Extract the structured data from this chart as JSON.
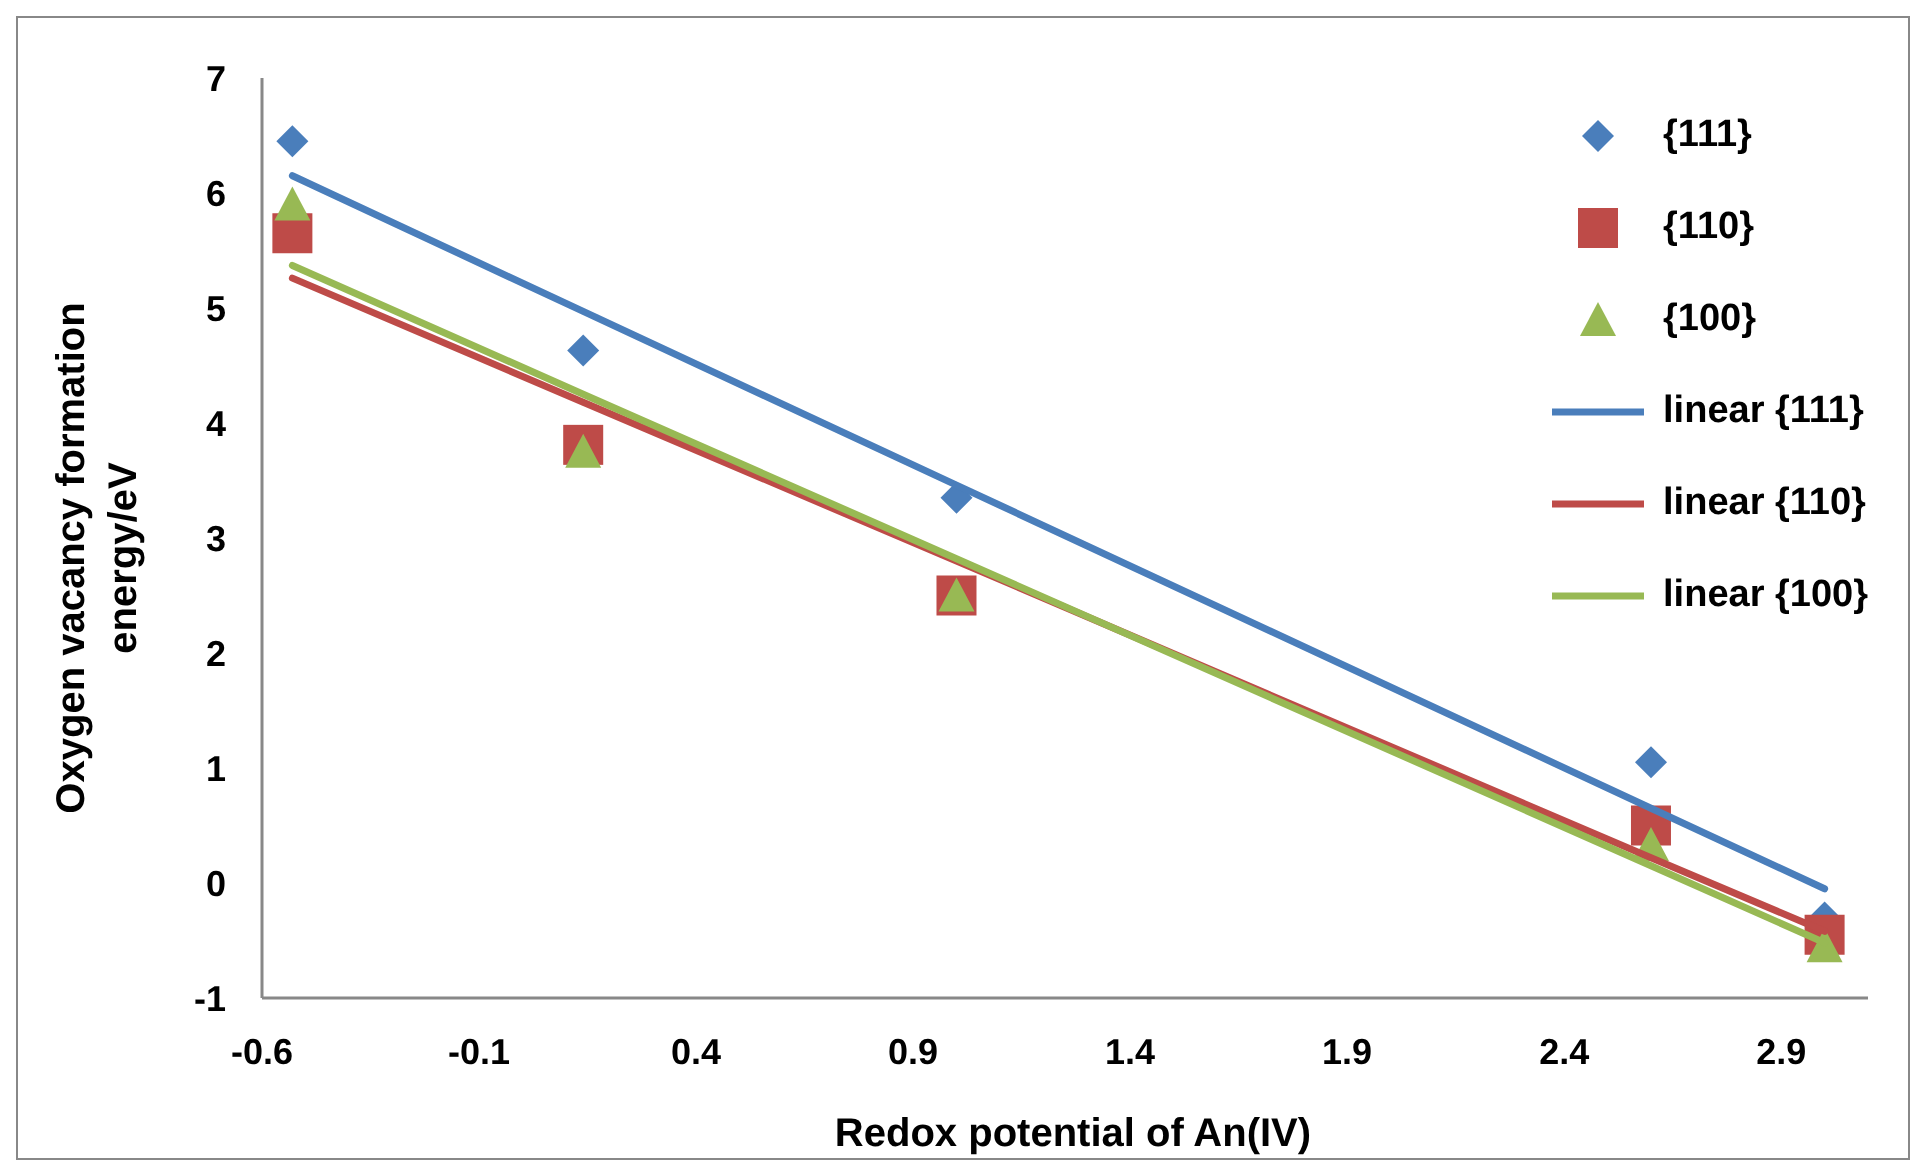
{
  "chart_data": {
    "type": "scatter",
    "xlabel": "Redox potential of An(IV)",
    "ylabel": "Oxygen vacancy formation energy/eV",
    "xlim": [
      -0.6,
      3.1
    ],
    "xticks": [
      -0.6,
      -0.1,
      0.4,
      0.9,
      1.4,
      1.9,
      2.4,
      2.9
    ],
    "ylim": [
      -1,
      7
    ],
    "yticks": [
      -1,
      0,
      1,
      2,
      3,
      4,
      5,
      6,
      7
    ],
    "grid": false,
    "legend": "top right",
    "x": [
      -0.53,
      0.14,
      1.0,
      2.6,
      3.0
    ],
    "series": [
      {
        "name": "{111}",
        "type": "scatter",
        "marker": "diamond",
        "color": "#4a7ebb",
        "values": [
          6.45,
          4.63,
          3.35,
          1.05,
          -0.3
        ]
      },
      {
        "name": "{110}",
        "marker": "square",
        "color": "#be4b48",
        "values": [
          5.65,
          3.81,
          2.5,
          0.5,
          -0.45
        ]
      },
      {
        "name": "{100}",
        "marker": "triangle",
        "color": "#98b954",
        "values": [
          5.9,
          3.75,
          2.5,
          0.33,
          -0.55
        ]
      },
      {
        "name": "linear {111}",
        "type": "line",
        "color": "#4a7ebb",
        "values": [
          6.15,
          4.97,
          3.46,
          0.65,
          -0.05
        ]
      },
      {
        "name": "linear {110}",
        "type": "line",
        "color": "#be4b48",
        "values": [
          5.26,
          4.18,
          2.8,
          0.22,
          -0.42
        ]
      },
      {
        "name": "linear {100}",
        "type": "line",
        "color": "#98b954",
        "values": [
          5.37,
          4.25,
          2.82,
          0.15,
          -0.52
        ]
      }
    ]
  }
}
